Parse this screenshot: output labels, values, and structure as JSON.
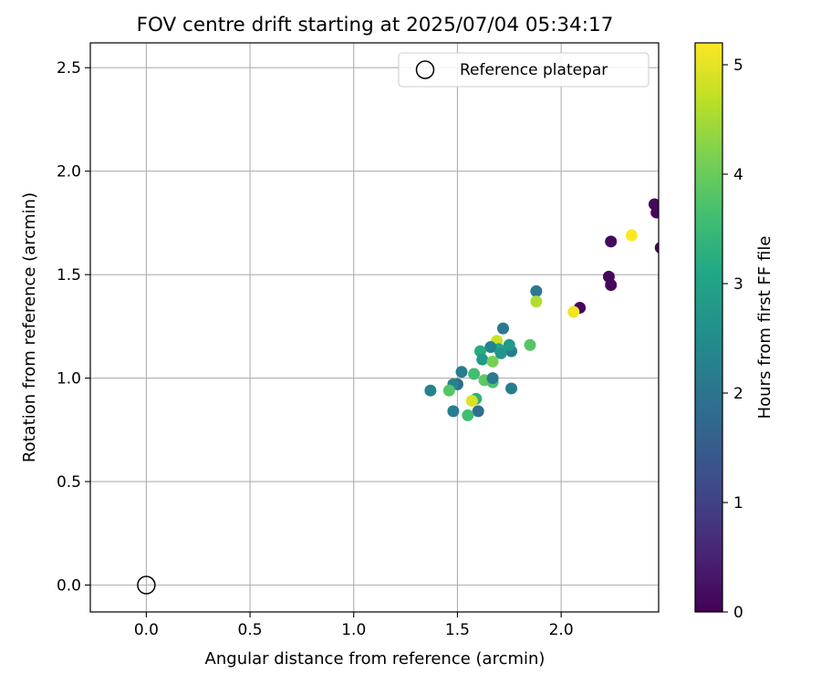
{
  "chart_data": {
    "type": "scatter",
    "title": "FOV centre drift starting at 2025/07/04 05:34:17",
    "xlabel": "Angular distance from reference (arcmin)",
    "ylabel": "Rotation from reference (arcmin)",
    "xlim": [
      -0.27,
      2.47
    ],
    "ylim": [
      -0.13,
      2.62
    ],
    "xticks": [
      "0.0",
      "0.5",
      "1.0",
      "1.5",
      "2.0"
    ],
    "yticks": [
      "0.0",
      "0.5",
      "1.0",
      "1.5",
      "2.0",
      "2.5"
    ],
    "grid": true,
    "legend": {
      "position": "top-right",
      "entries": [
        {
          "label": "Reference platepar",
          "marker": "open-circle",
          "x": 0.0,
          "y": 0.0
        }
      ]
    },
    "colorbar": {
      "label": "Hours from first FF file",
      "colormap": "viridis",
      "range": [
        0,
        5.2
      ],
      "ticks": [
        "0",
        "1",
        "2",
        "3",
        "4",
        "5"
      ]
    },
    "series": [
      {
        "points": [
          {
            "x": 2.45,
            "y": 1.84,
            "c": 0.1
          },
          {
            "x": 2.46,
            "y": 1.8,
            "c": 0.1
          },
          {
            "x": 2.48,
            "y": 1.63,
            "c": 0.1
          },
          {
            "x": 2.24,
            "y": 1.66,
            "c": 0.1
          },
          {
            "x": 2.23,
            "y": 1.49,
            "c": 0.1
          },
          {
            "x": 2.24,
            "y": 1.45,
            "c": 0.1
          },
          {
            "x": 2.09,
            "y": 1.34,
            "c": 0.1
          },
          {
            "x": 2.34,
            "y": 1.69,
            "c": 5.2
          },
          {
            "x": 2.06,
            "y": 1.32,
            "c": 5.1
          },
          {
            "x": 1.88,
            "y": 1.42,
            "c": 2.1
          },
          {
            "x": 1.88,
            "y": 1.37,
            "c": 4.6
          },
          {
            "x": 1.85,
            "y": 1.16,
            "c": 3.8
          },
          {
            "x": 1.72,
            "y": 1.24,
            "c": 2.1
          },
          {
            "x": 1.76,
            "y": 1.13,
            "c": 2.2
          },
          {
            "x": 1.75,
            "y": 1.16,
            "c": 2.8
          },
          {
            "x": 1.69,
            "y": 1.18,
            "c": 4.8
          },
          {
            "x": 1.7,
            "y": 1.14,
            "c": 3.1
          },
          {
            "x": 1.71,
            "y": 1.12,
            "c": 2.7
          },
          {
            "x": 1.66,
            "y": 1.15,
            "c": 2.3
          },
          {
            "x": 1.61,
            "y": 1.13,
            "c": 3.2
          },
          {
            "x": 1.62,
            "y": 1.09,
            "c": 2.8
          },
          {
            "x": 1.67,
            "y": 1.08,
            "c": 4.1
          },
          {
            "x": 1.58,
            "y": 1.02,
            "c": 3.6
          },
          {
            "x": 1.52,
            "y": 1.03,
            "c": 2.2
          },
          {
            "x": 1.5,
            "y": 0.97,
            "c": 1.8
          },
          {
            "x": 1.48,
            "y": 0.97,
            "c": 2.3
          },
          {
            "x": 1.63,
            "y": 0.99,
            "c": 3.9
          },
          {
            "x": 1.67,
            "y": 0.98,
            "c": 3.7
          },
          {
            "x": 1.67,
            "y": 1.0,
            "c": 2.1
          },
          {
            "x": 1.76,
            "y": 0.95,
            "c": 2.2
          },
          {
            "x": 1.37,
            "y": 0.94,
            "c": 2.3
          },
          {
            "x": 1.46,
            "y": 0.94,
            "c": 3.8
          },
          {
            "x": 1.59,
            "y": 0.9,
            "c": 3.3
          },
          {
            "x": 1.57,
            "y": 0.89,
            "c": 4.9
          },
          {
            "x": 1.48,
            "y": 0.84,
            "c": 2.2
          },
          {
            "x": 1.6,
            "y": 0.84,
            "c": 1.9
          },
          {
            "x": 1.55,
            "y": 0.82,
            "c": 3.6
          }
        ]
      }
    ]
  }
}
